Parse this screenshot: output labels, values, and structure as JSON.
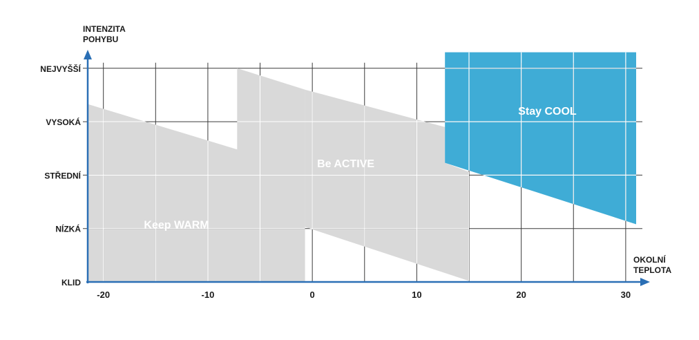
{
  "chart_data": {
    "type": "area",
    "y_title_lines": [
      "INTENZITA",
      "POHYBU"
    ],
    "x_title_lines": [
      "OKOLNÍ",
      "TEPLOTA"
    ],
    "x_ticks": [
      -20,
      -10,
      0,
      10,
      20,
      30
    ],
    "x_tick_labels": [
      "-20",
      "-10",
      "0",
      "10",
      "20",
      "30"
    ],
    "xlim": [
      -21.5,
      31
    ],
    "y_categories": [
      "KLID",
      "NÍZKÁ",
      "STŘEDNÍ",
      "VYSOKÁ",
      "NEJVYŠŠÍ"
    ],
    "ylim": [
      0,
      4.35
    ],
    "grid": true,
    "zones": [
      {
        "label": "Keep WARM",
        "color": "#d9d9d9",
        "polygon": [
          [
            -21.5,
            0
          ],
          [
            -21.5,
            3.33
          ],
          [
            -7.2,
            2.48
          ],
          [
            -7.2,
            4.0
          ],
          [
            -0.7,
            3.6
          ],
          [
            -0.7,
            0
          ]
        ],
        "label_at": [
          -13,
          1.0
        ]
      },
      {
        "label": "Be ACTIVE",
        "color": "#d9d9d9",
        "polygon": [
          [
            -0.7,
            0
          ],
          [
            -0.7,
            1.03
          ],
          [
            15,
            0.02
          ],
          [
            15,
            2.06
          ],
          [
            12.7,
            2.23
          ],
          [
            12.7,
            2.9
          ],
          [
            -0.7,
            3.6
          ]
        ],
        "label_at": [
          3.2,
          2.15
        ]
      },
      {
        "label": "Stay COOL",
        "color": "#3facd6",
        "polygon": [
          [
            12.7,
            4.3
          ],
          [
            31,
            4.3
          ],
          [
            31,
            1.08
          ],
          [
            12.7,
            2.23
          ]
        ],
        "label_at": [
          22.5,
          3.13
        ]
      }
    ]
  }
}
